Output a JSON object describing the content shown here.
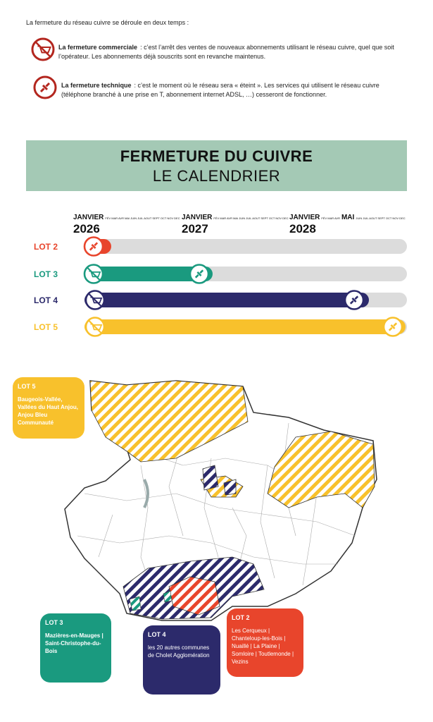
{
  "intro": "La fermeture du réseau cuivre se déroule en deux temps :",
  "items": [
    {
      "label": "La fermeture commerciale",
      "text": ": c’est l’arrêt des ventes de nouveaux abonnements utilisant le réseau cuivre, quel que soit l’opérateur. Les abonnements déjà souscrits sont en revanche maintenus."
    },
    {
      "label": "La fermeture technique",
      "text": ": c’est le moment où le réseau sera « éteint ». Les services qui utilisent le réseau cuivre (téléphone branché à une prise en T, abonnement internet  ADSL, …) cesseront de fonctionner."
    }
  ],
  "banner": {
    "title": "FERMETURE DU CUIVRE",
    "subtitle": "LE CALENDRIER"
  },
  "timeline": {
    "years": [
      {
        "month": "JANVIER",
        "year": "2026",
        "months": "FÉV MAR AVR MAI JUIN JUIL AOUT SEPT OCT NOV DEC"
      },
      {
        "month": "JANVIER",
        "year": "2027",
        "months": "FÉV MAR AVR MAI JUIN JUIL AOUT SEPT OCT NOV DEC"
      },
      {
        "month": "JANVIER",
        "year": "2028",
        "months": "FÉV MAR AVR",
        "highlight": "MAI",
        "after": "JUIN JUIL AOUT SEPT OCT NOV DEC"
      }
    ],
    "lots": [
      "LOT 2",
      "LOT 3",
      "LOT 4",
      "LOT 5"
    ]
  },
  "legends": [
    {
      "title": "LOT 5",
      "text": "Baugeois-Vallée, Vallées du Haut Anjou, Anjou Bleu Communauté"
    },
    {
      "title": "LOT 3",
      "text": "Mazières-en-Mauges | Saint-Christophe-du-Bois"
    },
    {
      "title": "LOT 4",
      "text": "les 20 autres communes de Cholet Agglomération"
    },
    {
      "title": "LOT 2",
      "text": "Les Cerqueux | Chanteloup-les-Bois | Nuaillé | La Plaine | Somloire | Toutlemonde | Vezins"
    }
  ]
}
